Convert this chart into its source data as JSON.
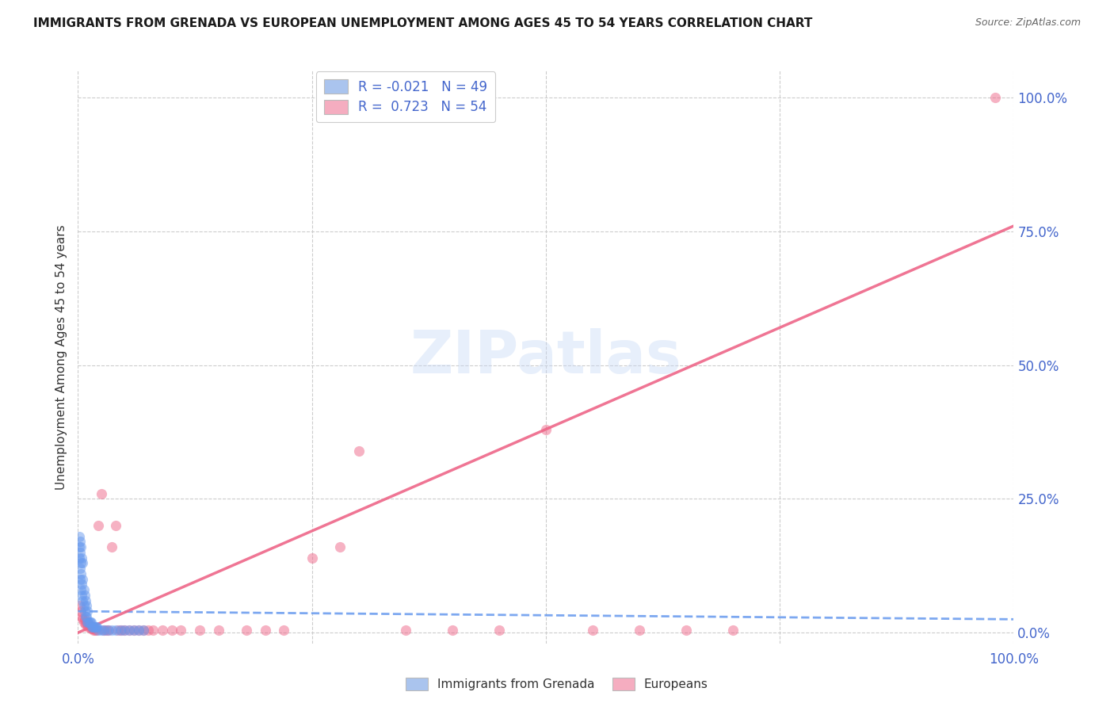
{
  "title": "IMMIGRANTS FROM GRENADA VS EUROPEAN UNEMPLOYMENT AMONG AGES 45 TO 54 YEARS CORRELATION CHART",
  "source": "Source: ZipAtlas.com",
  "ylabel_label": "Unemployment Among Ages 45 to 54 years",
  "right_yticks": [
    "0.0%",
    "25.0%",
    "50.0%",
    "75.0%",
    "100.0%"
  ],
  "right_ytick_vals": [
    0.0,
    0.25,
    0.5,
    0.75,
    1.0
  ],
  "watermark_text": "ZIPatlas",
  "legend_line1": "R = -0.021   N = 49",
  "legend_line2": "R =  0.723   N = 54",
  "legend_label1": "Immigrants from Grenada",
  "legend_label2": "Europeans",
  "blue_scatter_x": [
    0.001,
    0.001,
    0.001,
    0.002,
    0.002,
    0.002,
    0.002,
    0.003,
    0.003,
    0.003,
    0.003,
    0.004,
    0.004,
    0.004,
    0.005,
    0.005,
    0.005,
    0.006,
    0.006,
    0.007,
    0.007,
    0.008,
    0.008,
    0.009,
    0.009,
    0.01,
    0.01,
    0.011,
    0.012,
    0.013,
    0.014,
    0.015,
    0.016,
    0.017,
    0.018,
    0.019,
    0.02,
    0.022,
    0.025,
    0.028,
    0.032,
    0.036,
    0.04,
    0.045,
    0.05,
    0.055,
    0.06,
    0.065,
    0.07
  ],
  "blue_scatter_y": [
    0.14,
    0.16,
    0.18,
    0.1,
    0.12,
    0.15,
    0.17,
    0.08,
    0.11,
    0.13,
    0.16,
    0.07,
    0.09,
    0.14,
    0.06,
    0.1,
    0.13,
    0.05,
    0.08,
    0.04,
    0.07,
    0.03,
    0.06,
    0.03,
    0.05,
    0.02,
    0.04,
    0.02,
    0.02,
    0.02,
    0.02,
    0.01,
    0.01,
    0.01,
    0.01,
    0.01,
    0.01,
    0.005,
    0.005,
    0.005,
    0.005,
    0.005,
    0.005,
    0.005,
    0.005,
    0.005,
    0.005,
    0.005,
    0.005
  ],
  "pink_scatter_x": [
    0.002,
    0.003,
    0.004,
    0.005,
    0.006,
    0.007,
    0.008,
    0.009,
    0.01,
    0.011,
    0.012,
    0.013,
    0.014,
    0.015,
    0.016,
    0.017,
    0.018,
    0.02,
    0.022,
    0.025,
    0.028,
    0.03,
    0.033,
    0.036,
    0.04,
    0.043,
    0.046,
    0.05,
    0.055,
    0.06,
    0.065,
    0.07,
    0.075,
    0.08,
    0.09,
    0.1,
    0.11,
    0.13,
    0.15,
    0.18,
    0.2,
    0.22,
    0.25,
    0.28,
    0.3,
    0.35,
    0.4,
    0.45,
    0.5,
    0.55,
    0.6,
    0.65,
    0.7,
    0.98
  ],
  "pink_scatter_y": [
    0.05,
    0.04,
    0.03,
    0.025,
    0.02,
    0.025,
    0.015,
    0.02,
    0.015,
    0.01,
    0.015,
    0.01,
    0.008,
    0.01,
    0.008,
    0.005,
    0.005,
    0.005,
    0.2,
    0.26,
    0.005,
    0.005,
    0.005,
    0.16,
    0.2,
    0.005,
    0.005,
    0.005,
    0.005,
    0.005,
    0.005,
    0.005,
    0.005,
    0.005,
    0.005,
    0.005,
    0.005,
    0.005,
    0.005,
    0.005,
    0.005,
    0.005,
    0.14,
    0.16,
    0.34,
    0.005,
    0.005,
    0.005,
    0.38,
    0.005,
    0.005,
    0.005,
    0.005,
    1.0
  ],
  "blue_line_x": [
    0.0,
    1.0
  ],
  "blue_line_y": [
    0.04,
    0.025
  ],
  "pink_line_x": [
    0.0,
    1.0
  ],
  "pink_line_y": [
    0.0,
    0.76
  ],
  "scatter_alpha": 0.5,
  "scatter_size": 90,
  "background_color": "#ffffff",
  "grid_color": "#cccccc",
  "title_color": "#1a1a1a",
  "source_color": "#666666",
  "blue_color": "#6699ee",
  "pink_color": "#ee6688",
  "blue_fill": "#aac4ee",
  "pink_fill": "#f5adc0",
  "axis_label_color": "#4466cc",
  "xlim": [
    0.0,
    1.0
  ],
  "ylim": [
    -0.02,
    1.05
  ]
}
